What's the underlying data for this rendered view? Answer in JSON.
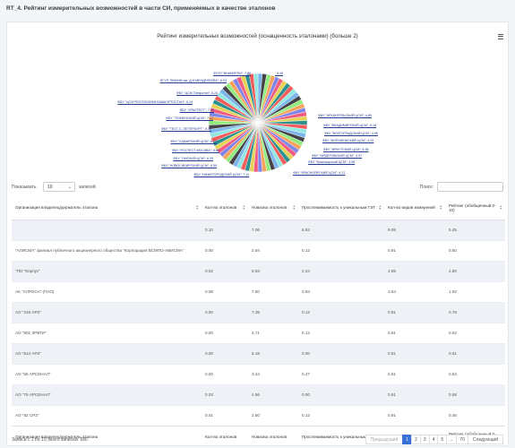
{
  "page": {
    "title": "RT_4. Рейтинг измерительных возможностей в части СИ, применяемых в качестве эталонов"
  },
  "chart_data": {
    "type": "pie",
    "title": "Рейтинг измерительных возможностей (оснащенность эталонами) (больше 2)",
    "labels": [
      "ФГУП \"ВНИИМ им. Д.И.МЕНДЕЛЕЕВА\": 6.03",
      "ФБУ \"ЦСМ Татарстан\": 6.24",
      "ФБУ \"ЦСМ РЕСПУБЛИКИ БАШКОРТОСТАН\": 6.19",
      "ФБУ \"УРАЛТЕСТ\": 7.04",
      "ФБУ \"ТЮМЕНСКИЙ ЦСМ\": 7.12",
      "ФБУ \"ТЕСТ-С.-ПЕТЕРБУРГ\": 8.02",
      "ФБУ \"САМАРСКИЙ ЦСМ\": 6.13",
      "ФБУ \"РОСТЕСТ-МОСКВА\": 8.83",
      "ФБУ \"ОМСКИЙ ЦСМ\": 6.39",
      "ФБУ \"НОВОСИБИРСКИЙ ЦСМ\": 6.59",
      "ФБУ \"НИЖЕГОРОДСКИЙ ЦСМ\": 7.11",
      "ФБУ \"АРХАНГЕЛЬСКИЙ ЦСМ\": 4.89",
      "ФБУ \"ВЛАДИМИРСКИЙ ЦСМ\": 5.18",
      "ФБУ \"ВОЛГОГРАДСКИЙ ЦСМ\": 4.96",
      "ФБУ \"ВОРОНЕЖСКИЙ ЦСМ\": 4.92",
      "ФБУ \"ИРКУТСКИЙ ЦСМ\": 5.36",
      "ФБУ \"КЕМЕРОВСКИЙ ЦСМ\": 4.97",
      "ФБУ \"Красноярский ЦСМ\": 4.98",
      "ФБУ \"КРАСНОЯРСКИЙ ЦСМ\": 6.21",
      "ФГУП \"ВНИИФТРИ\": 7.86",
      ": 5.45"
    ],
    "slice_count": 70,
    "palette": [
      "#7cb5ec",
      "#434348",
      "#90ed7d",
      "#f7a35c",
      "#8085e9",
      "#f15c80",
      "#e4d354",
      "#2b908f",
      "#f45b5b",
      "#91e8e1"
    ]
  },
  "controls": {
    "show_label": "Показывать",
    "show_value": "10",
    "entries_label": "записей",
    "search_label": "Поиск:"
  },
  "table": {
    "headers": [
      "Организация владелец/держатель эталона",
      "Кол-во эталонов",
      "Новизна эталонов",
      "Прослеживаемость к уникальным ГЭТ",
      "Кол-во видов измерений",
      "Рейтинг (обобщенный 0-10)"
    ],
    "footer_headers": [
      "Организация владелец/держатель эталона",
      "Кол-во эталонов",
      "Новизна эталонов",
      "Прослеживаемость к уникальным ГЭТ",
      "Кол-во видов измерений",
      "Рейтинг (обобщенный 0-10)"
    ],
    "rows": [
      [
        "",
        "0.10",
        "7.06",
        "6.62",
        "9.09",
        "5.45"
      ],
      [
        "\"АЛИСМА\" филиал публичного акционерного общества \"Корпорация ВСМПО-АВИСМА\"",
        "0.00",
        "2.94",
        "0.12",
        "0.91",
        "0.50"
      ],
      [
        "\"ПО \"Корпус\"",
        "0.02",
        "6.03",
        "2.24",
        "4.55",
        "2.50"
      ],
      [
        "АК \"АЛРОСА\" (ПАО)",
        "0.08",
        "7.50",
        "0.94",
        "3.64",
        "1.92"
      ],
      [
        "АО \"218 АРЗ\"",
        "0.00",
        "7.35",
        "0.12",
        "0.91",
        "0.78"
      ],
      [
        "АО \"502 ЗРВТИ\"",
        "0.00",
        "4.71",
        "0.12",
        "0.91",
        "0.62"
      ],
      [
        "АО \"514 АРЗ\"",
        "0.00",
        "5.15",
        "0.00",
        "0.91",
        "0.61"
      ],
      [
        "АО \"55 АРСЕНАЛ\"",
        "0.00",
        "3.24",
        "0.47",
        "0.91",
        "0.63"
      ],
      [
        "АО \"75 АРСЕНАЛ\"",
        "0.03",
        "4.56",
        "0.00",
        "0.91",
        "0.58"
      ],
      [
        "АО \"82 СРЗ\"",
        "0.01",
        "2.50",
        "0.12",
        "0.91",
        "0.46"
      ]
    ]
  },
  "footer": {
    "info": "Записи с 1 по 10, всего записей: 680",
    "prev": "Предыдущий",
    "pages": [
      "1",
      "2",
      "3",
      "4",
      "5",
      "...",
      "70"
    ],
    "next": "Следующий"
  }
}
